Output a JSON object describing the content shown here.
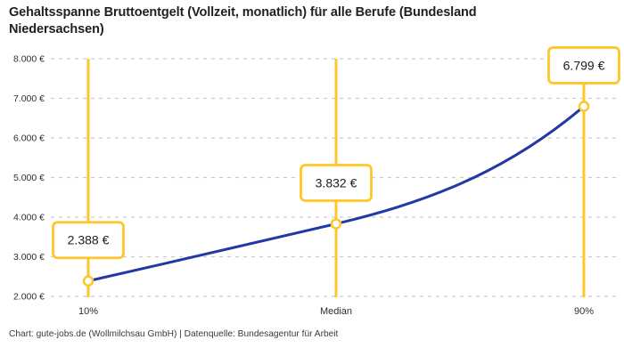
{
  "header": {
    "title_lines": [
      "Gehaltsspanne Bruttoentgelt (Vollzeit, monatlich) für alle Berufe (Bundesland",
      "Niedersachsen)"
    ]
  },
  "footer": {
    "text": "Chart: gute-jobs.de (Wollmilchsau GmbH) | Datenquelle: Bundesagentur für Arbeit"
  },
  "chart_data": {
    "type": "line",
    "title": "Gehaltsspanne Bruttoentgelt (Vollzeit, monatlich) für alle Berufe (Bundesland Niedersachsen)",
    "categories": [
      "10%",
      "Median",
      "90%"
    ],
    "values": [
      2388,
      3832,
      6799
    ],
    "value_labels": [
      "2.388 €",
      "3.832 €",
      "6.799 €"
    ],
    "unit": "€ / Monat",
    "ylim": [
      2000,
      8000
    ],
    "y_ticks": [
      2000,
      3000,
      4000,
      5000,
      6000,
      7000,
      8000
    ],
    "y_tick_labels": [
      "2.000 €",
      "3.000 €",
      "4.000 €",
      "5.000 €",
      "6.000 €",
      "7.000 €",
      "8.000 €"
    ],
    "grid": "horizontal-dashed",
    "legend": "none",
    "colors": {
      "line": "#2238A3",
      "accent": "#FFC627",
      "grid": "#cbcbcb",
      "text": "#2e2e2e",
      "marker_fill": "#ffffff",
      "label_box_fill": "#ffffff"
    }
  }
}
